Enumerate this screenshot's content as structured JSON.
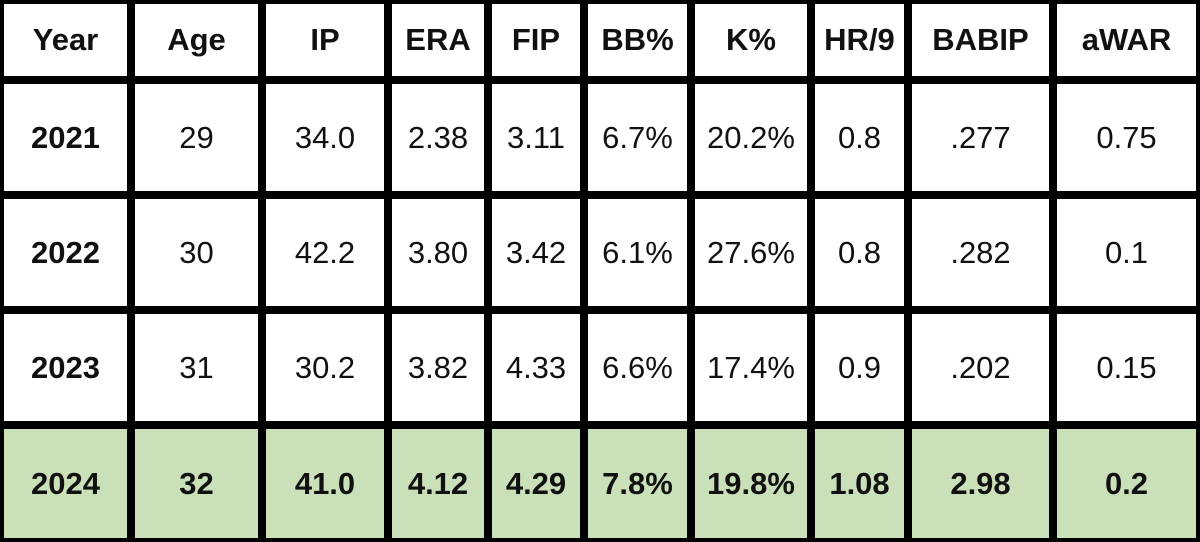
{
  "headers": [
    "Year",
    "Age",
    "IP",
    "ERA",
    "FIP",
    "BB%",
    "K%",
    "HR/9",
    "BABIP",
    "aWAR"
  ],
  "rows": [
    [
      "2021",
      "29",
      "34.0",
      "2.38",
      "3.11",
      "6.7%",
      "20.2%",
      "0.8",
      ".277",
      "0.75"
    ],
    [
      "2022",
      "30",
      "42.2",
      "3.80",
      "3.42",
      "6.1%",
      "27.6%",
      "0.8",
      ".282",
      "0.1"
    ],
    [
      "2023",
      "31",
      "30.2",
      "3.82",
      "4.33",
      "6.6%",
      "17.4%",
      "0.9",
      ".202",
      "0.15"
    ],
    [
      "2024",
      "32",
      "41.0",
      "4.12",
      "4.29",
      "7.8%",
      "19.8%",
      "1.08",
      "2.98",
      "0.2"
    ]
  ],
  "colors": {
    "grid": "#000000",
    "cell": "#ffffff",
    "highlight_row": "#c9e0b8"
  }
}
